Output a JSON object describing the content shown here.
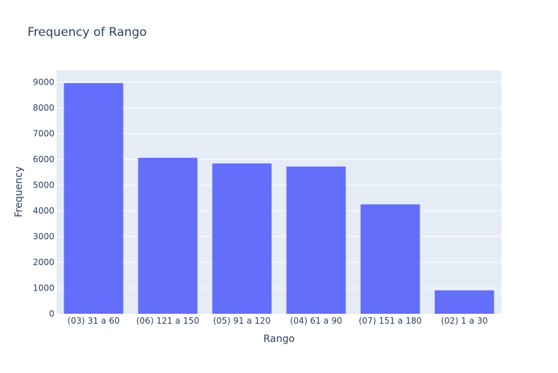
{
  "chart_data": {
    "type": "bar",
    "title": "Frequency of Rango",
    "xlabel": "Rango",
    "ylabel": "Frequency",
    "categories": [
      "(03) 31 a 60",
      "(06) 121 a 150",
      "(05) 91 a 120",
      "(04) 61 a 90",
      "(07) 151 a 180",
      "(02) 1 a 30"
    ],
    "values": [
      8960,
      6060,
      5840,
      5720,
      4250,
      910
    ],
    "ylim": [
      0,
      9450
    ],
    "yticks": [
      0,
      1000,
      2000,
      3000,
      4000,
      5000,
      6000,
      7000,
      8000,
      9000
    ],
    "grid": true,
    "legend": "none",
    "colors": {
      "bar": "#636efa",
      "plot_background": "#e5ecf6",
      "grid": "#ffffff",
      "text": "#2a3f5f"
    }
  }
}
